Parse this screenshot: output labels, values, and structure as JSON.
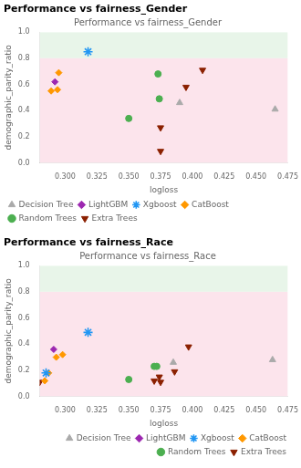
{
  "chart_data": [
    {
      "type": "scatter",
      "title": "Performance vs fairness_Gender",
      "subtitle": "Performance vs fairness_Gender",
      "xlabel": "logloss",
      "ylabel": "demographic_parity_ratio",
      "xlim": [
        0.28,
        0.475
      ],
      "ylim": [
        0.0,
        1.0
      ],
      "xticks": [
        {
          "value": 0.3,
          "label": "0.300"
        },
        0.325,
        {
          "value": 0.35,
          "label": "0.350"
        },
        0.375,
        {
          "value": 0.4,
          "label": "0.400"
        },
        0.425,
        {
          "value": 0.45,
          "label": "0.450"
        },
        0.475
      ],
      "yticks": [
        {
          "value": 0.0,
          "label": "0.0"
        },
        0.2,
        0.4,
        0.6,
        0.8,
        {
          "value": 1.0,
          "label": "1.0"
        }
      ],
      "bands": [
        {
          "from": 0.8,
          "to": 1.0,
          "color": "#e8f5e9"
        },
        {
          "from": 0.0,
          "to": 0.8,
          "color": "#fce4ec"
        }
      ],
      "grid": false,
      "legend": "lower left",
      "series": [
        {
          "name": "Decision Tree",
          "color": "#aaaaaa",
          "marker": "triangle-up",
          "values": [
            [
              0.39,
              0.46
            ],
            [
              0.465,
              0.41
            ]
          ]
        },
        {
          "name": "LightGBM",
          "color": "#9c27b0",
          "marker": "diamond",
          "values": [
            [
              0.292,
              0.62
            ]
          ]
        },
        {
          "name": "Xgboost",
          "color": "#2196f3",
          "marker": "star",
          "values": [
            [
              0.318,
              0.85
            ]
          ]
        },
        {
          "name": "CatBoost",
          "color": "#ff9800",
          "marker": "diamond",
          "values": [
            [
              0.289,
              0.55
            ],
            [
              0.295,
              0.69
            ],
            [
              0.294,
              0.56
            ]
          ]
        },
        {
          "name": "Random Trees",
          "color": "#4caf50",
          "marker": "circle",
          "values": [
            [
              0.35,
              0.34
            ],
            [
              0.373,
              0.68
            ],
            [
              0.374,
              0.49
            ]
          ]
        },
        {
          "name": "Extra Trees",
          "color": "#8b2000",
          "marker": "triangle-down",
          "values": [
            [
              0.375,
              0.27
            ],
            [
              0.395,
              0.58
            ],
            [
              0.408,
              0.71
            ],
            [
              0.375,
              0.09
            ]
          ]
        }
      ]
    },
    {
      "type": "scatter",
      "title": "Performance vs fairness_Race",
      "subtitle": "Performance vs fairness_Race",
      "xlabel": "logloss",
      "ylabel": "demographic_parity_ratio",
      "xlim": [
        0.28,
        0.475
      ],
      "ylim": [
        0.0,
        1.0
      ],
      "xticks": [
        {
          "value": 0.3,
          "label": "0.300"
        },
        0.325,
        {
          "value": 0.35,
          "label": "0.350"
        },
        0.375,
        {
          "value": 0.4,
          "label": "0.400"
        },
        0.425,
        {
          "value": 0.45,
          "label": "0.450"
        },
        0.475
      ],
      "yticks": [
        {
          "value": 0.0,
          "label": "0.0"
        },
        0.2,
        0.4,
        0.6,
        0.8,
        {
          "value": 1.0,
          "label": "1.0"
        }
      ],
      "bands": [
        {
          "from": 0.8,
          "to": 1.0,
          "color": "#e8f5e9"
        },
        {
          "from": 0.0,
          "to": 0.8,
          "color": "#fce4ec"
        }
      ],
      "grid": false,
      "legend": "lower right",
      "series": [
        {
          "name": "Decision Tree",
          "color": "#aaaaaa",
          "marker": "triangle-up",
          "values": [
            [
              0.385,
              0.26
            ],
            [
              0.463,
              0.28
            ]
          ]
        },
        {
          "name": "LightGBM",
          "color": "#9c27b0",
          "marker": "diamond",
          "values": [
            [
              0.291,
              0.36
            ]
          ]
        },
        {
          "name": "Xgboost",
          "color": "#2196f3",
          "marker": "star",
          "values": [
            [
              0.285,
              0.18
            ],
            [
              0.318,
              0.49
            ]
          ]
        },
        {
          "name": "CatBoost",
          "color": "#ff9800",
          "marker": "diamond",
          "values": [
            [
              0.284,
              0.12
            ],
            [
              0.287,
              0.18
            ],
            [
              0.293,
              0.3
            ],
            [
              0.298,
              0.32
            ]
          ]
        },
        {
          "name": "Random Trees",
          "color": "#4caf50",
          "marker": "circle",
          "values": [
            [
              0.35,
              0.13
            ],
            [
              0.37,
              0.23
            ],
            [
              0.372,
              0.23
            ]
          ]
        },
        {
          "name": "Extra Trees",
          "color": "#8b2000",
          "marker": "triangle-down",
          "values": [
            [
              0.28,
              0.11
            ],
            [
              0.37,
              0.12
            ],
            [
              0.374,
              0.15
            ],
            [
              0.375,
              0.11
            ],
            [
              0.386,
              0.19
            ],
            [
              0.397,
              0.38
            ]
          ]
        }
      ]
    }
  ]
}
